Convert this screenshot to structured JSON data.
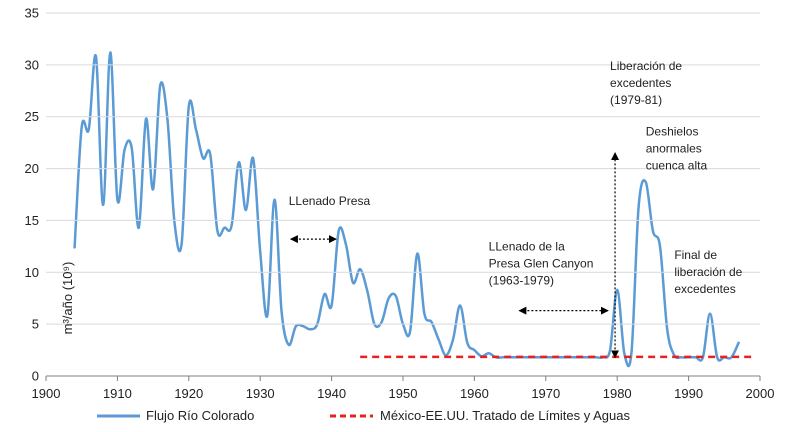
{
  "chart_data": {
    "type": "line",
    "title": "",
    "xlabel": "",
    "ylabel": "m³/año (10⁹)",
    "xlim": [
      1900,
      2000
    ],
    "ylim": [
      0,
      35
    ],
    "xticks": [
      "1900",
      "1910",
      "1920",
      "1930",
      "1940",
      "1950",
      "1960",
      "1970",
      "1980",
      "1990",
      "2000"
    ],
    "yticks": [
      "0",
      "5",
      "10",
      "15",
      "20",
      "25",
      "30",
      "35"
    ],
    "grid": "horizontal",
    "legend": "bottom",
    "series": [
      {
        "name": "Flujo Río Colorado",
        "color": "#5b9bd5",
        "style": "solid",
        "points": [
          [
            1904,
            12.4
          ],
          [
            1905,
            24.0
          ],
          [
            1906,
            23.8
          ],
          [
            1907,
            30.8
          ],
          [
            1908,
            16.5
          ],
          [
            1909,
            31.2
          ],
          [
            1910,
            17.0
          ],
          [
            1911,
            21.8
          ],
          [
            1912,
            22.0
          ],
          [
            1913,
            14.3
          ],
          [
            1914,
            24.8
          ],
          [
            1915,
            18.0
          ],
          [
            1916,
            28.0
          ],
          [
            1917,
            24.8
          ],
          [
            1918,
            14.8
          ],
          [
            1919,
            12.8
          ],
          [
            1920,
            26.0
          ],
          [
            1921,
            23.8
          ],
          [
            1922,
            21.0
          ],
          [
            1923,
            21.4
          ],
          [
            1924,
            14.0
          ],
          [
            1925,
            14.3
          ],
          [
            1926,
            14.5
          ],
          [
            1927,
            20.6
          ],
          [
            1928,
            16.0
          ],
          [
            1929,
            21.0
          ],
          [
            1930,
            12.0
          ],
          [
            1931,
            5.8
          ],
          [
            1932,
            17.0
          ],
          [
            1933,
            6.2
          ],
          [
            1934,
            3.0
          ],
          [
            1935,
            4.8
          ],
          [
            1936,
            4.8
          ],
          [
            1937,
            4.5
          ],
          [
            1938,
            5.0
          ],
          [
            1939,
            7.9
          ],
          [
            1940,
            6.8
          ],
          [
            1941,
            14.0
          ],
          [
            1942,
            12.7
          ],
          [
            1943,
            9.0
          ],
          [
            1944,
            10.3
          ],
          [
            1945,
            8.2
          ],
          [
            1946,
            5.0
          ],
          [
            1947,
            5.2
          ],
          [
            1948,
            7.5
          ],
          [
            1949,
            7.7
          ],
          [
            1950,
            5.0
          ],
          [
            1951,
            4.3
          ],
          [
            1952,
            11.8
          ],
          [
            1953,
            6.0
          ],
          [
            1954,
            5.2
          ],
          [
            1955,
            3.5
          ],
          [
            1956,
            2.0
          ],
          [
            1957,
            3.5
          ],
          [
            1958,
            6.8
          ],
          [
            1959,
            3.2
          ],
          [
            1960,
            2.5
          ],
          [
            1961,
            1.9
          ],
          [
            1962,
            2.2
          ],
          [
            1963,
            1.8
          ],
          [
            1964,
            1.8
          ],
          [
            1965,
            1.8
          ],
          [
            1966,
            1.8
          ],
          [
            1967,
            1.8
          ],
          [
            1968,
            1.8
          ],
          [
            1969,
            1.8
          ],
          [
            1970,
            1.8
          ],
          [
            1971,
            1.8
          ],
          [
            1972,
            1.8
          ],
          [
            1973,
            1.8
          ],
          [
            1974,
            1.8
          ],
          [
            1975,
            1.8
          ],
          [
            1976,
            1.8
          ],
          [
            1977,
            1.8
          ],
          [
            1978,
            1.8
          ],
          [
            1979,
            2.5
          ],
          [
            1980,
            8.3
          ],
          [
            1981,
            2.2
          ],
          [
            1982,
            2.3
          ],
          [
            1983,
            16.3
          ],
          [
            1984,
            18.7
          ],
          [
            1985,
            14.0
          ],
          [
            1986,
            12.5
          ],
          [
            1987,
            4.5
          ],
          [
            1988,
            2.0
          ],
          [
            1989,
            1.8
          ],
          [
            1990,
            1.8
          ],
          [
            1991,
            1.8
          ],
          [
            1992,
            1.8
          ],
          [
            1993,
            6.0
          ],
          [
            1994,
            1.8
          ],
          [
            1995,
            1.8
          ],
          [
            1996,
            1.8
          ],
          [
            1997,
            3.2
          ]
        ]
      },
      {
        "name": "México-EE.UU. Tratado de Límites y Aguas",
        "color": "#e82020",
        "style": "dashed",
        "points": [
          [
            1944,
            1.85
          ],
          [
            1999,
            1.85
          ]
        ]
      }
    ],
    "annotations": [
      {
        "lines": [
          "LLenado Presa"
        ],
        "at": [
          1934,
          16.5
        ]
      },
      {
        "lines": [
          "LLenado de la",
          "Presa Glen Canyon",
          "(1963-1979)"
        ],
        "at": [
          1962,
          12.1
        ]
      },
      {
        "lines": [
          "Liberación de",
          "excedentes",
          "(1979-81)"
        ],
        "at": [
          1979,
          29.5
        ]
      },
      {
        "lines": [
          "Deshielos",
          "anormales",
          "cuenca alta"
        ],
        "at": [
          1984,
          23.2
        ]
      },
      {
        "lines": [
          "Final de",
          "liberación de",
          "excedentes"
        ],
        "at": [
          1988,
          11.3
        ]
      }
    ],
    "arrows": [
      {
        "from": [
          1934.3,
          13.2
        ],
        "to": [
          1940.6,
          13.2
        ],
        "type": "double"
      },
      {
        "from": [
          1966.3,
          6.3
        ],
        "to": [
          1978.7,
          6.3
        ],
        "type": "double"
      },
      {
        "from": [
          1979.7,
          1.8
        ],
        "to": [
          1979.7,
          21.5
        ],
        "type": "double"
      }
    ]
  }
}
